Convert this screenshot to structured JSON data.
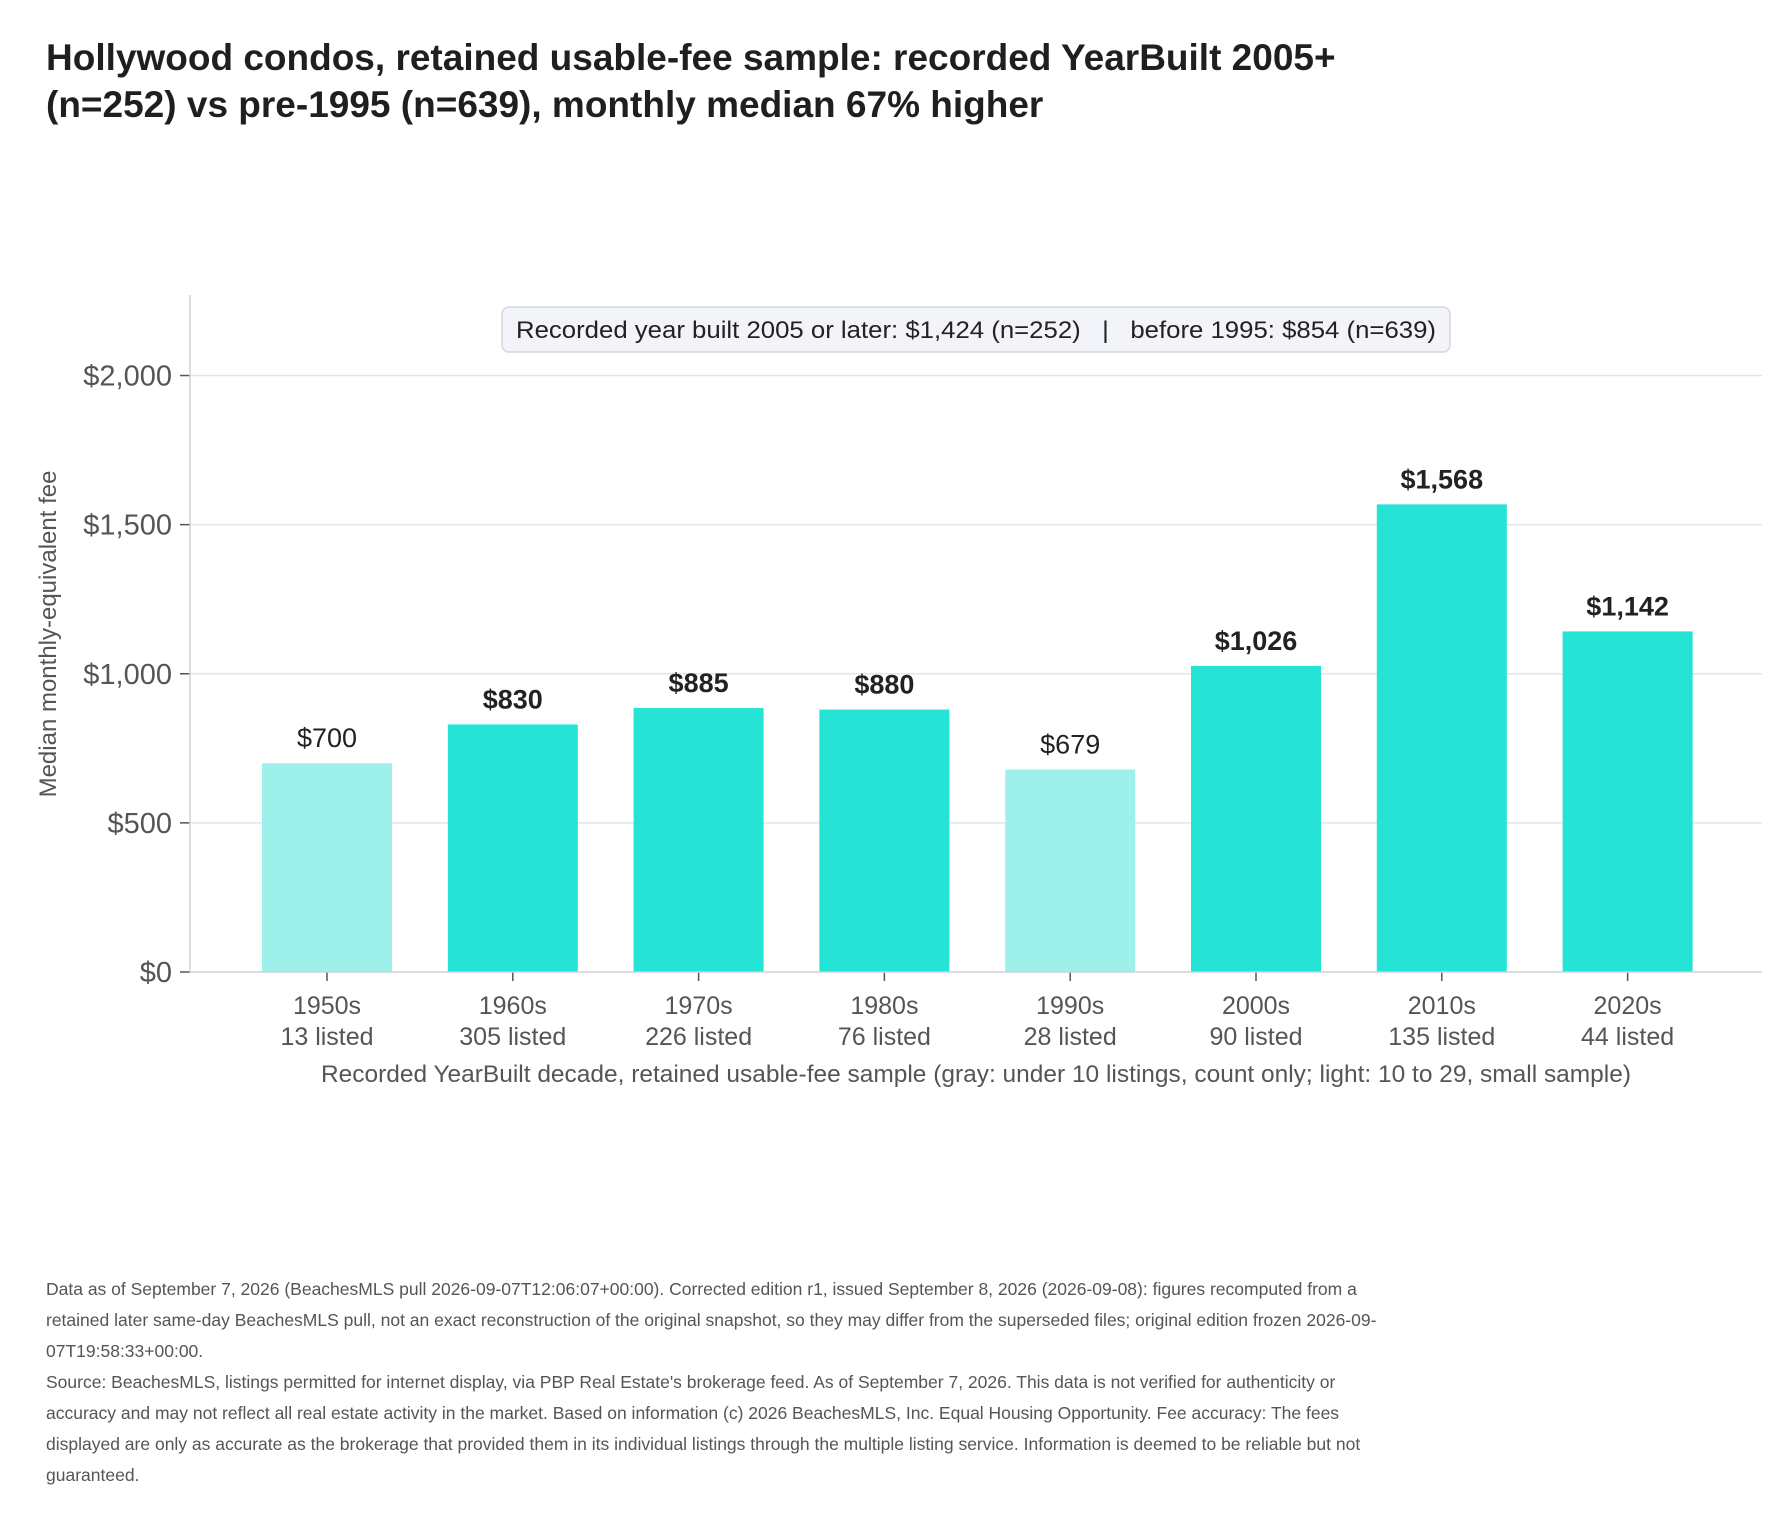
{
  "title": "Hollywood condos, retained usable-fee sample: recorded YearBuilt 2005+ (n=252) vs pre-1995 (n=639), monthly median 67% higher",
  "annotation": "Recorded year built 2005 or later: $1,424 (n=252)   |   before 1995: $854 (n=639)",
  "colors": {
    "full": "#25e3d5",
    "light": "#9df1ea",
    "grid": "#e3e3ee",
    "axis": "#cfd0dc"
  },
  "chart_data": {
    "type": "bar",
    "title": "Hollywood condos, retained usable-fee sample: recorded YearBuilt 2005+ (n=252) vs pre-1995 (n=639), monthly median 67% higher",
    "xlabel": "Recorded YearBuilt decade, retained usable-fee sample (gray: under 10 listings, count only; light: 10 to 29, small sample)",
    "ylabel": "Median monthly-equivalent fee",
    "ylim": [
      0,
      2270
    ],
    "yticks": [
      0,
      500,
      1000,
      1500,
      2000
    ],
    "ytick_labels": [
      "$0",
      "$500",
      "$1,000",
      "$1,500",
      "$2,000"
    ],
    "categories": [
      "1950s",
      "1960s",
      "1970s",
      "1980s",
      "1990s",
      "2000s",
      "2010s",
      "2020s"
    ],
    "counts": [
      "13 listed",
      "305 listed",
      "226 listed",
      "76 listed",
      "28 listed",
      "90 listed",
      "135 listed",
      "44 listed"
    ],
    "values": [
      700,
      830,
      885,
      880,
      679,
      1026,
      1568,
      1142
    ],
    "value_labels": [
      "$700",
      "$830",
      "$885",
      "$880",
      "$679",
      "$1,026",
      "$1,568",
      "$1,142"
    ],
    "small_sample": [
      true,
      false,
      false,
      false,
      true,
      false,
      false,
      false
    ],
    "grid": true
  },
  "notes": [
    "Data as of September 7, 2026 (BeachesMLS pull 2026-09-07T12:06:07+00:00). Corrected edition r1, issued September 8, 2026 (2026-09-08): figures recomputed from a retained later same-day BeachesMLS pull, not an exact reconstruction of the original snapshot, so they may differ from the superseded files; original edition frozen 2026-09-07T19:58:33+00:00.",
    "Source: BeachesMLS, listings permitted for internet display, via PBP Real Estate's brokerage feed. As of September 7, 2026. This data is not verified for authenticity or accuracy and may not reflect all real estate activity in the market. Based on information (c) 2026 BeachesMLS, Inc. Equal Housing Opportunity. Fee accuracy: The fees displayed are only as accurate as the brokerage that provided them in its individual listings through the multiple listing service. Information is deemed to be reliable but not guaranteed."
  ]
}
